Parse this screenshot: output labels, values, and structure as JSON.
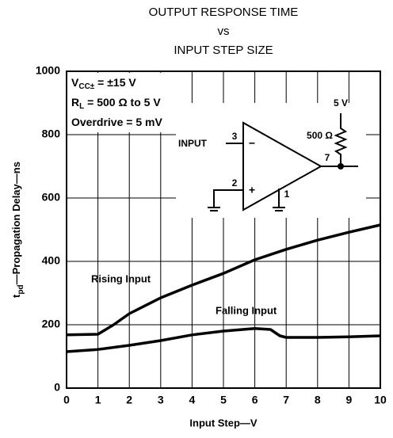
{
  "chart_data": {
    "type": "line",
    "title": [
      "OUTPUT RESPONSE TIME",
      "vs",
      "INPUT STEP SIZE"
    ],
    "xlabel": "Input Step—V",
    "ylabel": {
      "symbol": "t",
      "subscript": "pd",
      "text": "—Propagation Delay—ns"
    },
    "conditions": [
      {
        "symbol": "V",
        "subscript": "CC±",
        "text": " = ±15 V"
      },
      {
        "symbol": "R",
        "subscript": "L",
        "text": " = 500 Ω to 5 V"
      },
      {
        "symbol": "Overdrive",
        "subscript": "",
        "text": " = 5 mV"
      }
    ],
    "circuit": {
      "input": "INPUT",
      "pin_in_neg": "3",
      "minus": "−",
      "pin_in_pos": "2",
      "plus": "+",
      "pin_out": "7",
      "pin_gnd": "1",
      "supply": "5 V",
      "resistor": "500 Ω"
    },
    "annotations": [
      "Rising Input",
      "Falling Input"
    ],
    "xlim": [
      0,
      10
    ],
    "xticks": [
      0,
      1,
      2,
      3,
      4,
      5,
      6,
      7,
      8,
      9,
      10
    ],
    "ylim": [
      0,
      1000
    ],
    "yticks": [
      0,
      200,
      400,
      600,
      800,
      1000
    ],
    "grid": true,
    "series": [
      {
        "name": "Rising Input",
        "color": "#000000",
        "x": [
          0,
          1,
          1.5,
          2,
          3,
          4,
          5,
          6,
          7,
          8,
          9,
          10
        ],
        "values": [
          168,
          170,
          200,
          235,
          285,
          325,
          362,
          405,
          438,
          467,
          492,
          515
        ]
      },
      {
        "name": "Falling Input",
        "color": "#000000",
        "x": [
          0,
          1,
          2,
          3,
          4,
          5,
          6,
          6.5,
          6.8,
          7,
          8,
          9,
          10
        ],
        "values": [
          115,
          122,
          135,
          150,
          168,
          180,
          188,
          185,
          165,
          160,
          160,
          162,
          165
        ]
      }
    ]
  }
}
